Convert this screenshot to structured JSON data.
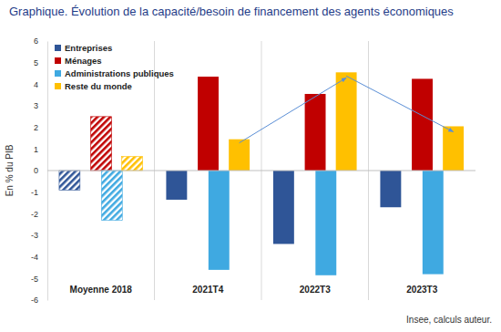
{
  "chart_data": {
    "type": "bar",
    "title": "Graphique. Évolution de la capacité/besoin de financement des agents économiques",
    "y_label": "En % du PIB",
    "source": "Insee, calculs auteur.",
    "categories": [
      "Moyenne 2018",
      "2021T4",
      "2022T3",
      "2023T3"
    ],
    "series": [
      {
        "name": "Entreprises",
        "color": "#2f5597",
        "values": [
          -0.9,
          -1.35,
          -3.4,
          -1.7
        ]
      },
      {
        "name": "Ménages",
        "color": "#c00000",
        "values": [
          2.5,
          4.35,
          3.55,
          4.25
        ]
      },
      {
        "name": "Administrations publiques",
        "color": "#3fa9e1",
        "values": [
          -2.3,
          -4.6,
          -4.85,
          -4.8
        ]
      },
      {
        "name": "Reste du monde",
        "color": "#ffc000",
        "values": [
          0.65,
          1.45,
          4.55,
          2.05
        ]
      }
    ],
    "ylim": [
      -6,
      6
    ],
    "yticks": [
      -6,
      -5,
      -4,
      -3,
      -2,
      -1,
      0,
      1,
      2,
      3,
      4,
      5,
      6
    ],
    "legend": "top-left",
    "grid": false
  }
}
